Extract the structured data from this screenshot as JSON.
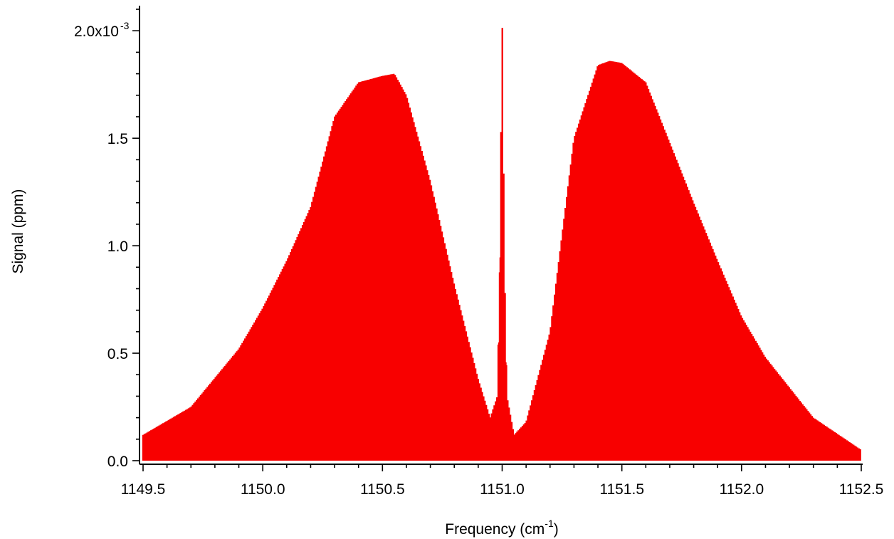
{
  "chart_data": {
    "type": "area",
    "xlabel": {
      "text": "Frequency (cm",
      "sup": "-1",
      "tail": ")"
    },
    "ylabel": "Signal (ppm)",
    "xlim": [
      1149.5,
      1152.5
    ],
    "ylim": [
      0.0,
      0.00211
    ],
    "x_ticks": [
      1149.5,
      1150.0,
      1150.5,
      1151.0,
      1151.5,
      1152.0,
      1152.5
    ],
    "x_tick_labels": [
      "1149.5",
      "1150.0",
      "1150.5",
      "1151.0",
      "1151.5",
      "1152.0",
      "1152.5"
    ],
    "y_ticks": [
      0.0,
      0.0005,
      0.001,
      0.0015,
      0.002
    ],
    "y_tick_labels": [
      "0.0",
      "0.5",
      "1.0",
      "1.5",
      "2.0x10"
    ],
    "y_top_label_exponent": "-3",
    "grid": false,
    "color": "#f80000",
    "series": [
      {
        "x": [
          1149.5,
          1149.7,
          1149.9,
          1150.0,
          1150.1,
          1150.2,
          1150.3,
          1150.4,
          1150.5,
          1150.55,
          1150.6,
          1150.7,
          1150.8,
          1150.9,
          1150.95,
          1150.98,
          1150.99,
          1151.0,
          1151.01,
          1151.02,
          1151.05,
          1151.1,
          1151.2,
          1151.3,
          1151.4,
          1151.45,
          1151.5,
          1151.6,
          1151.7,
          1151.8,
          1151.9,
          1152.0,
          1152.1,
          1152.3,
          1152.5
        ],
        "y_envelope": [
          0.00012,
          0.00025,
          0.00052,
          0.00071,
          0.00093,
          0.00118,
          0.0016,
          0.00176,
          0.00179,
          0.0018,
          0.0017,
          0.0013,
          0.00082,
          0.00038,
          0.0002,
          0.0003,
          0.0009,
          0.00211,
          0.0009,
          0.0003,
          0.00012,
          0.00018,
          0.0006,
          0.0015,
          0.00184,
          0.00186,
          0.00185,
          0.00176,
          0.00148,
          0.0012,
          0.00093,
          0.00067,
          0.00048,
          0.0002,
          5e-05
        ]
      }
    ]
  }
}
